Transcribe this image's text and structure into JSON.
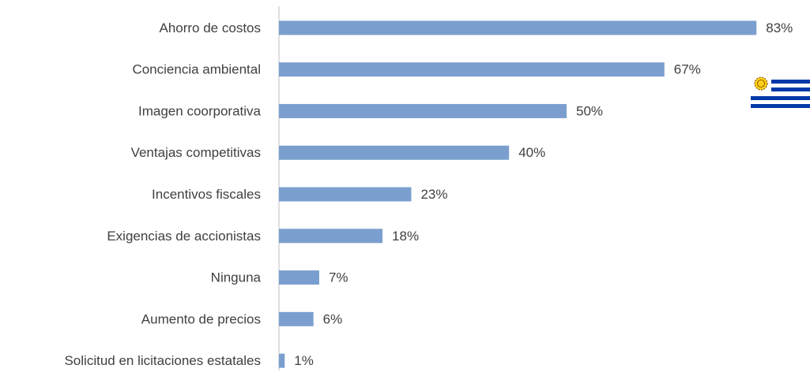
{
  "chart_data": {
    "type": "bar",
    "orientation": "horizontal",
    "categories": [
      "Ahorro de costos",
      "Conciencia ambiental",
      "Imagen coorporativa",
      "Ventajas competitivas",
      "Incentivos fiscales",
      "Exigencias de accionistas",
      "Ninguna",
      "Aumento de precios",
      "Solicitud en licitaciones estatales"
    ],
    "values": [
      83,
      67,
      50,
      40,
      23,
      18,
      7,
      6,
      1
    ],
    "value_labels": [
      "83%",
      "67%",
      "50%",
      "40%",
      "23%",
      "18%",
      "7%",
      "6%",
      "1%"
    ],
    "color": "#7a9fcf",
    "xlim": [
      0,
      90
    ]
  }
}
